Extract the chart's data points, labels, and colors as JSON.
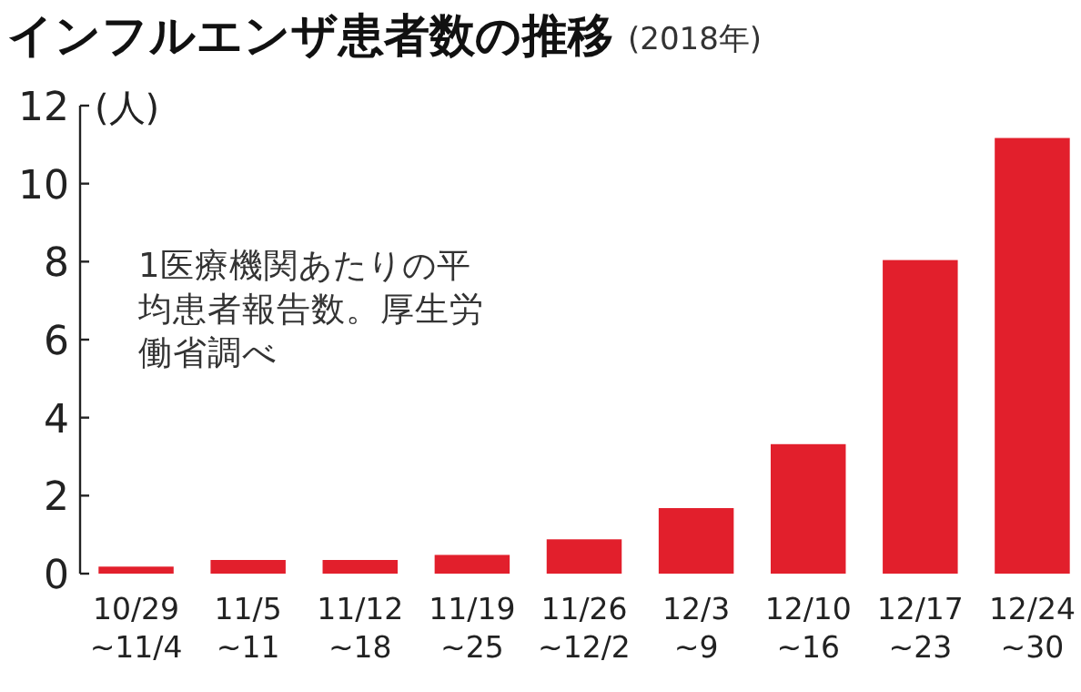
{
  "chart_data": {
    "type": "bar",
    "title": "インフルエンザ患者数の推移",
    "subtitle": "(2018年)",
    "ylabel": "(人)",
    "categories": [
      "10/29\n~11/4",
      "11/5\n~11",
      "11/12\n~18",
      "11/19\n~25",
      "11/26\n~12/2",
      "12/3\n~9",
      "12/10\n~16",
      "12/17\n~23",
      "12/24\n~30"
    ],
    "values": [
      0.18,
      0.35,
      0.35,
      0.48,
      0.88,
      1.68,
      3.32,
      8.04,
      11.17
    ],
    "color": "#e21f2c",
    "ylim": [
      0,
      12
    ],
    "yticks": [
      0,
      2,
      4,
      6,
      8,
      10,
      12
    ],
    "grid": false,
    "annotations": [
      "1医療機関あたりの平均患者報告数。厚生労働省調べ"
    ]
  }
}
